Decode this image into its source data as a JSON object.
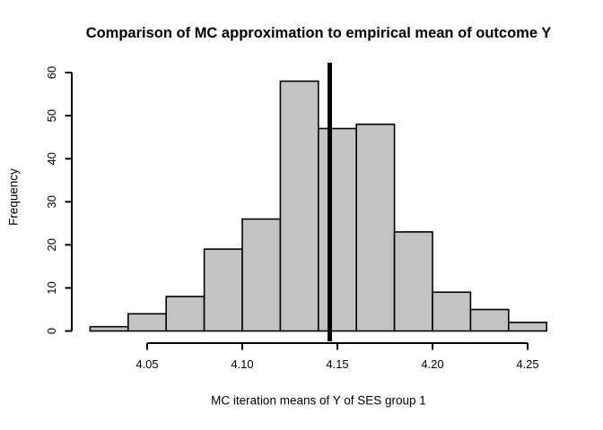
{
  "chart_data": {
    "type": "bar",
    "subtype": "histogram",
    "title": "Comparison of MC approximation to empirical mean of outcome Y",
    "xlabel": "MC iteration means of Y of SES group 1",
    "ylabel": "Frequency",
    "bin_start": 4.02,
    "bin_width": 0.02,
    "bin_edges": [
      4.02,
      4.04,
      4.06,
      4.08,
      4.1,
      4.12,
      4.14,
      4.16,
      4.18,
      4.2,
      4.22,
      4.24,
      4.26
    ],
    "counts": [
      1,
      4,
      8,
      19,
      26,
      58,
      47,
      48,
      23,
      9,
      5,
      2
    ],
    "xlim": [
      4.02,
      4.26
    ],
    "ylim": [
      0,
      60
    ],
    "xtick_values": [
      4.05,
      4.1,
      4.15,
      4.2,
      4.25
    ],
    "xtick_labels": [
      "4.05",
      "4.10",
      "4.15",
      "4.20",
      "4.25"
    ],
    "ytick_values": [
      0,
      10,
      20,
      30,
      40,
      50,
      60
    ],
    "ytick_labels": [
      "0",
      "10",
      "20",
      "30",
      "40",
      "50",
      "60"
    ],
    "grid": "off",
    "legend": "none",
    "vline": {
      "x": 4.146,
      "meaning": "empirical mean of outcome Y",
      "color": "#000000",
      "width": 5
    },
    "colors": {
      "background": "#ffffff",
      "bar_fill": "#c3c3c3",
      "bar_border": "#000000",
      "axis": "#000000",
      "text": "#000000"
    }
  }
}
